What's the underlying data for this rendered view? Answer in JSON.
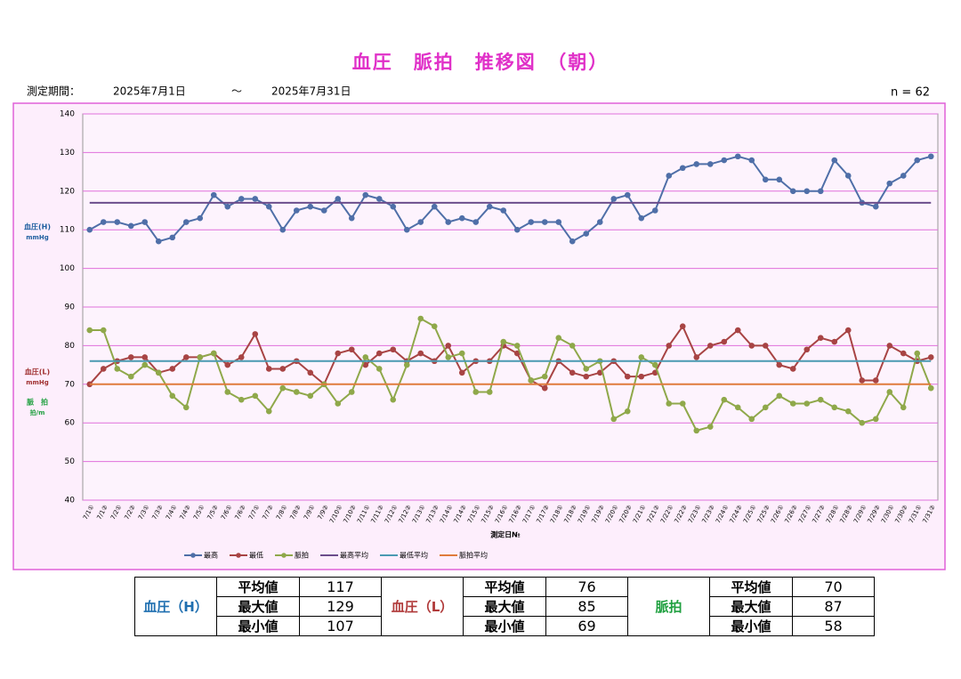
{
  "header": {
    "period_label": "測定期間：",
    "start": "2025年7月1日",
    "tilde": "～",
    "end": "2025年7月31日",
    "n_label": "n = 62"
  },
  "chart_data": {
    "type": "line",
    "title": "血圧　脈拍　推移図　（朝）",
    "categories": [
      "7/1①",
      "7/1②",
      "7/2①",
      "7/2②",
      "7/3①",
      "7/3②",
      "7/4①",
      "7/4②",
      "7/5①",
      "7/5②",
      "7/6①",
      "7/6②",
      "7/7①",
      "7/7②",
      "7/8①",
      "7/8②",
      "7/9①",
      "7/9②",
      "7/10①",
      "7/10②",
      "7/11①",
      "7/11②",
      "7/12①",
      "7/12②",
      "7/13①",
      "7/13②",
      "7/14①",
      "7/14②",
      "7/15①",
      "7/15②",
      "7/16①",
      "7/16②",
      "7/17①",
      "7/17②",
      "7/18①",
      "7/18②",
      "7/19①",
      "7/19②",
      "7/20①",
      "7/20②",
      "7/21①",
      "7/21②",
      "7/22①",
      "7/22②",
      "7/23①",
      "7/23②",
      "7/24①",
      "7/24②",
      "7/25①",
      "7/25②",
      "7/26①",
      "7/26②",
      "7/27①",
      "7/27②",
      "7/28①",
      "7/28②",
      "7/29①",
      "7/29②",
      "7/30①",
      "7/30②",
      "7/31①",
      "7/31②"
    ],
    "series": [
      {
        "name": "最高",
        "color": "#4f6fa8",
        "values": [
          110,
          112,
          112,
          111,
          112,
          107,
          108,
          112,
          113,
          119,
          116,
          118,
          118,
          116,
          110,
          115,
          116,
          115,
          118,
          113,
          119,
          118,
          116,
          110,
          112,
          116,
          112,
          113,
          112,
          116,
          115,
          110,
          112,
          112,
          112,
          107,
          109,
          112,
          118,
          119,
          113,
          115,
          124,
          126,
          127,
          127,
          128,
          129,
          128,
          123,
          123,
          120,
          120,
          120,
          128,
          124,
          117,
          116,
          122,
          124,
          128,
          129
        ]
      },
      {
        "name": "最低",
        "color": "#a84444",
        "values": [
          70,
          74,
          76,
          77,
          77,
          73,
          74,
          77,
          77,
          78,
          75,
          77,
          83,
          74,
          74,
          76,
          73,
          70,
          78,
          79,
          75,
          78,
          79,
          76,
          78,
          76,
          80,
          73,
          76,
          76,
          80,
          78,
          71,
          69,
          76,
          73,
          72,
          73,
          76,
          72,
          72,
          73,
          80,
          85,
          77,
          80,
          81,
          84,
          80,
          80,
          75,
          74,
          79,
          82,
          81,
          84,
          71,
          71,
          80,
          78,
          76,
          77
        ]
      },
      {
        "name": "脈拍",
        "color": "#8fa84a",
        "values": [
          84,
          84,
          74,
          72,
          75,
          73,
          67,
          64,
          77,
          78,
          68,
          66,
          67,
          63,
          69,
          68,
          67,
          70,
          65,
          68,
          77,
          74,
          66,
          75,
          87,
          85,
          77,
          78,
          68,
          68,
          81,
          80,
          71,
          72,
          82,
          80,
          74,
          76,
          61,
          63,
          77,
          75,
          65,
          65,
          58,
          59,
          66,
          64,
          61,
          64,
          67,
          65,
          65,
          66,
          64,
          63,
          60,
          61,
          68,
          64,
          78,
          69
        ]
      },
      {
        "name": "最高平均",
        "color": "#6b4d8c",
        "value": 117
      },
      {
        "name": "最低平均",
        "color": "#4a9ab2",
        "value": 76
      },
      {
        "name": "脈拍平均",
        "color": "#e07b3c",
        "value": 70
      }
    ],
    "ylim": [
      40,
      140
    ],
    "yticks": [
      40,
      50,
      60,
      70,
      80,
      90,
      100,
      110,
      120,
      130,
      140
    ],
    "grid": true,
    "x_label": "測定日№",
    "y_labels": [
      {
        "text": "血圧(H)",
        "unit": "mmHg",
        "color": "#1f5fa0"
      },
      {
        "text": "血圧(L)",
        "unit": "mmHg",
        "color": "#a03030"
      },
      {
        "text": "脈　拍",
        "unit": "拍/m",
        "color": "#20a040"
      }
    ]
  },
  "summary": {
    "groups": [
      {
        "name": "血圧（H）",
        "color": "#1f6fb0",
        "rows": [
          {
            "label": "平均値",
            "value": 117
          },
          {
            "label": "最大値",
            "value": 129
          },
          {
            "label": "最小値",
            "value": 107
          }
        ]
      },
      {
        "name": "血圧（L）",
        "color": "#b03a3a",
        "rows": [
          {
            "label": "平均値",
            "value": 76
          },
          {
            "label": "最大値",
            "value": 85
          },
          {
            "label": "最小値",
            "value": 69
          }
        ]
      },
      {
        "name": "脈拍",
        "color": "#20a040",
        "rows": [
          {
            "label": "平均値",
            "value": 70
          },
          {
            "label": "最大値",
            "value": 87
          },
          {
            "label": "最小値",
            "value": 58
          }
        ]
      }
    ]
  }
}
